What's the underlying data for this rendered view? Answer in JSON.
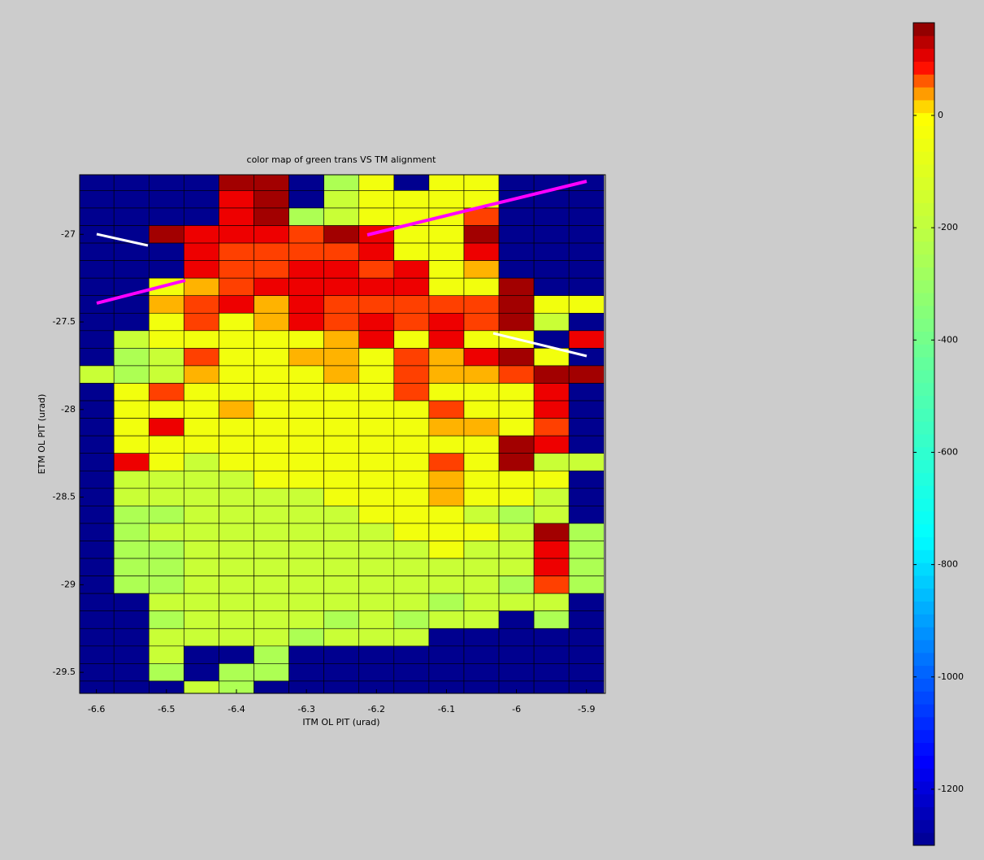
{
  "chart_data": {
    "type": "heatmap",
    "title": "color map of green trans VS TM alignment",
    "x_label": "ITM OL PIT (urad)",
    "y_label": "ETM OL PIT (urad)",
    "x": [
      -6.6,
      -6.55,
      -6.5,
      -6.45,
      -6.4,
      -6.35,
      -6.3,
      -6.25,
      -6.2,
      -6.15,
      -6.1,
      -6.05,
      -6.0,
      -5.95,
      -5.9
    ],
    "y": [
      -26.7,
      -26.8,
      -26.9,
      -27.0,
      -27.1,
      -27.2,
      -27.3,
      -27.4,
      -27.5,
      -27.6,
      -27.7,
      -27.8,
      -27.9,
      -28.0,
      -28.1,
      -28.2,
      -28.3,
      -28.4,
      -28.5,
      -28.6,
      -28.7,
      -28.8,
      -28.9,
      -29.0,
      -29.1,
      -29.2,
      -29.3,
      -29.4,
      -29.5,
      -29.6
    ],
    "z": [
      [
        -1300,
        -1300,
        -1300,
        -1300,
        145,
        145,
        -1300,
        -250,
        -40,
        -1300,
        -40,
        -40,
        -1300,
        -1300,
        -1300
      ],
      [
        -1300,
        -1300,
        -1300,
        -1300,
        100,
        145,
        -1300,
        -170,
        -40,
        -40,
        -40,
        -40,
        -1300,
        -1300,
        -1300
      ],
      [
        -1300,
        -1300,
        -1300,
        -1300,
        100,
        145,
        -250,
        -170,
        -40,
        -40,
        -40,
        70,
        -1300,
        -1300,
        -1300
      ],
      [
        -1300,
        -1300,
        145,
        100,
        100,
        100,
        70,
        145,
        100,
        -40,
        -40,
        145,
        -1300,
        -1300,
        -1300
      ],
      [
        -1300,
        -1300,
        -1300,
        100,
        70,
        70,
        70,
        70,
        100,
        -40,
        -40,
        100,
        -1300,
        -1300,
        -1300
      ],
      [
        -1300,
        -1300,
        -1300,
        100,
        70,
        70,
        100,
        100,
        70,
        100,
        -40,
        30,
        -1300,
        -1300,
        -1300
      ],
      [
        -1300,
        -1300,
        -40,
        30,
        70,
        100,
        100,
        100,
        100,
        100,
        -40,
        -40,
        145,
        -1300,
        -1300
      ],
      [
        -1300,
        -1300,
        30,
        70,
        100,
        30,
        100,
        70,
        70,
        70,
        70,
        70,
        145,
        -40,
        -40
      ],
      [
        -1300,
        -1300,
        -40,
        70,
        -40,
        30,
        100,
        70,
        100,
        70,
        100,
        70,
        145,
        -170,
        -1300
      ],
      [
        -1300,
        -170,
        -40,
        -40,
        -40,
        -40,
        -40,
        30,
        100,
        -40,
        100,
        -40,
        -40,
        -1300,
        100
      ],
      [
        -1300,
        -250,
        -170,
        70,
        -40,
        -40,
        30,
        30,
        -40,
        70,
        30,
        100,
        145,
        -40,
        -1300
      ],
      [
        -170,
        -250,
        -170,
        30,
        -40,
        -40,
        -40,
        30,
        -40,
        70,
        30,
        30,
        70,
        145,
        145
      ],
      [
        -1300,
        -40,
        70,
        -40,
        -40,
        -40,
        -40,
        -40,
        -40,
        70,
        -40,
        -40,
        -40,
        100,
        -1300
      ],
      [
        -1300,
        -40,
        -40,
        -40,
        30,
        -40,
        -40,
        -40,
        -40,
        -40,
        70,
        -40,
        -40,
        100,
        -1300
      ],
      [
        -1300,
        -40,
        100,
        -40,
        -40,
        -40,
        -40,
        -40,
        -40,
        -40,
        30,
        30,
        -40,
        70,
        -1300
      ],
      [
        -1300,
        -40,
        -40,
        -40,
        -40,
        -40,
        -40,
        -40,
        -40,
        -40,
        -40,
        -40,
        145,
        100,
        -1300
      ],
      [
        -1300,
        100,
        -40,
        -170,
        -40,
        -40,
        -40,
        -40,
        -40,
        -40,
        70,
        -40,
        145,
        -170,
        -170
      ],
      [
        -1300,
        -170,
        -170,
        -170,
        -170,
        -40,
        -40,
        -40,
        -40,
        -40,
        30,
        -40,
        -40,
        -40,
        -1300
      ],
      [
        -1300,
        -170,
        -170,
        -170,
        -170,
        -170,
        -170,
        -40,
        -40,
        -40,
        30,
        -40,
        -40,
        -170,
        -1300
      ],
      [
        -1300,
        -250,
        -250,
        -170,
        -170,
        -170,
        -170,
        -170,
        -40,
        -40,
        -40,
        -170,
        -250,
        -170,
        -1300
      ],
      [
        -1300,
        -250,
        -170,
        -170,
        -170,
        -170,
        -170,
        -170,
        -170,
        -40,
        -40,
        -40,
        -170,
        145,
        -250
      ],
      [
        -1300,
        -250,
        -250,
        -170,
        -170,
        -170,
        -170,
        -170,
        -170,
        -170,
        -40,
        -170,
        -170,
        100,
        -250
      ],
      [
        -1300,
        -250,
        -250,
        -170,
        -170,
        -170,
        -170,
        -170,
        -170,
        -170,
        -170,
        -170,
        -170,
        100,
        -250
      ],
      [
        -1300,
        -250,
        -250,
        -170,
        -170,
        -170,
        -170,
        -170,
        -170,
        -170,
        -170,
        -170,
        -250,
        70,
        -250
      ],
      [
        -1300,
        -1300,
        -170,
        -170,
        -170,
        -170,
        -170,
        -170,
        -170,
        -170,
        -250,
        -170,
        -170,
        -170,
        -1300
      ],
      [
        -1300,
        -1300,
        -250,
        -170,
        -170,
        -170,
        -170,
        -250,
        -170,
        -250,
        -170,
        -170,
        -1300,
        -250,
        -1300
      ],
      [
        -1300,
        -1300,
        -170,
        -170,
        -170,
        -170,
        -250,
        -170,
        -170,
        -170,
        -1300,
        -1300,
        -1300,
        -1300,
        -1300
      ],
      [
        -1300,
        -1300,
        -170,
        -1300,
        -1300,
        -250,
        -1300,
        -1300,
        -1300,
        -1300,
        -1300,
        -1300,
        -1300,
        -1300,
        -1300
      ],
      [
        -1300,
        -1300,
        -250,
        -1300,
        -250,
        -250,
        -1300,
        -1300,
        -1300,
        -1300,
        -1300,
        -1300,
        -1300,
        -1300,
        -1300
      ],
      [
        -1300,
        -1300,
        -1300,
        -170,
        -250,
        -1300,
        -1300,
        -1300,
        -1300,
        -1300,
        -1300,
        -1300,
        -1300,
        -1300,
        -1300
      ]
    ],
    "xlim": [
      -6.624,
      -5.873
    ],
    "ylim": [
      -29.62,
      -26.66
    ],
    "xticks": [
      -6.6,
      -6.5,
      -6.4,
      -6.3,
      -6.2,
      -6.1,
      -6,
      -5.9
    ],
    "yticks": [
      -29.5,
      -29,
      -28.5,
      -28,
      -27.5,
      -27
    ],
    "clim": [
      -1300,
      165
    ],
    "cticks": [
      -1200,
      -1000,
      -800,
      -600,
      -400,
      -200,
      0
    ],
    "colorscale": [
      [
        -1300,
        "#00008f"
      ],
      [
        -1150,
        "#0000ff"
      ],
      [
        -750,
        "#00ffff"
      ],
      [
        -450,
        "#60ff9f"
      ],
      [
        -200,
        "#c0ff40"
      ],
      [
        0,
        "#ffff00"
      ],
      [
        50,
        "#ff8000"
      ],
      [
        90,
        "#ff0000"
      ],
      [
        165,
        "#800000"
      ]
    ]
  }
}
